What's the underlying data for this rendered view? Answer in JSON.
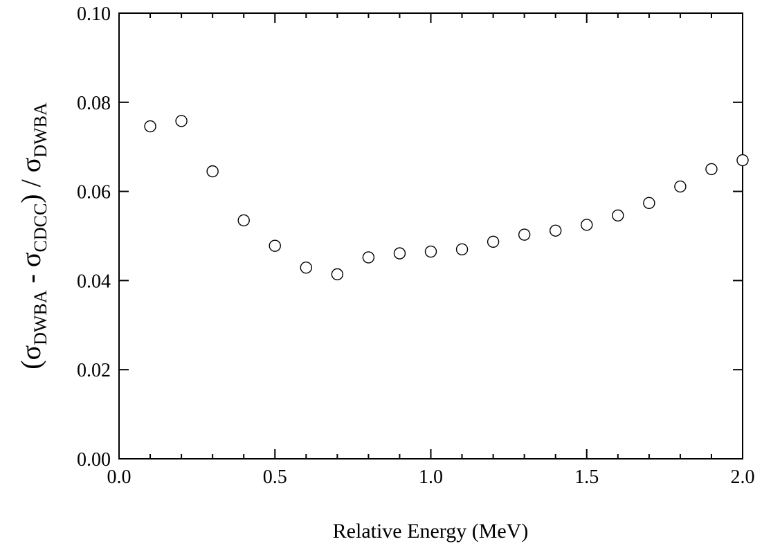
{
  "chart_data": {
    "type": "scatter",
    "title": "",
    "xlabel": "Relative Energy (MeV)",
    "ylabel": {
      "open_paren": "(",
      "sigma1": "σ",
      "sub1": "DWBA",
      "minus": " - ",
      "sigma2": "σ",
      "sub2": "CDCC",
      "close_div": ") / ",
      "sigma3": "σ",
      "sub3": "DWBA"
    },
    "xlim": [
      0.0,
      2.0
    ],
    "ylim": [
      0.0,
      0.1
    ],
    "x_ticks": [
      0.0,
      0.5,
      1.0,
      1.5,
      2.0
    ],
    "x_tick_labels": [
      "0.0",
      "0.5",
      "1.0",
      "1.5",
      "2.0"
    ],
    "x_minor_step": 0.1,
    "y_ticks": [
      0.0,
      0.02,
      0.04,
      0.06,
      0.08,
      0.1
    ],
    "y_tick_labels": [
      "0.00",
      "0.02",
      "0.04",
      "0.06",
      "0.08",
      "0.10"
    ],
    "grid": false,
    "marker": "open-circle",
    "series": [
      {
        "x": [
          0.1,
          0.2,
          0.3,
          0.4,
          0.5,
          0.6,
          0.7,
          0.8,
          0.9,
          1.0,
          1.1,
          1.2,
          1.3,
          1.4,
          1.5,
          1.6,
          1.7,
          1.8,
          1.9,
          2.0
        ],
        "y": [
          0.0746,
          0.0758,
          0.0645,
          0.0535,
          0.0478,
          0.0429,
          0.0414,
          0.0452,
          0.0461,
          0.0465,
          0.047,
          0.0487,
          0.0503,
          0.0512,
          0.0525,
          0.0546,
          0.0574,
          0.0611,
          0.065,
          0.067
        ]
      }
    ]
  }
}
